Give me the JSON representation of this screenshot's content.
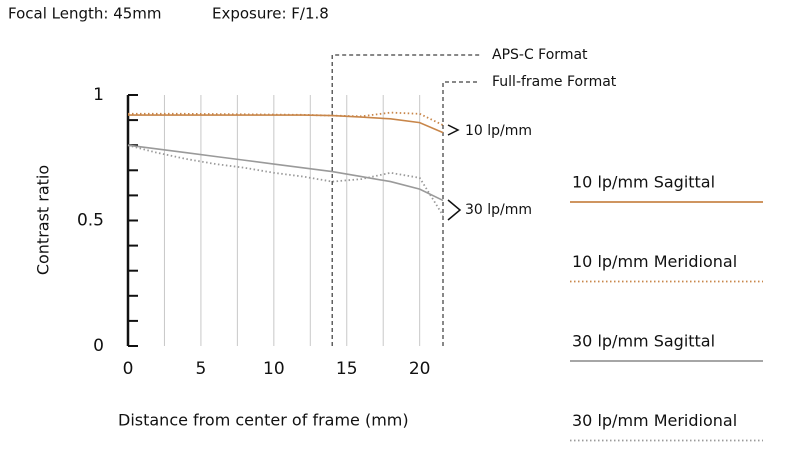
{
  "chart_data": {
    "type": "line",
    "title": "Focal Length: 45mm",
    "subtitle": "Exposure: F/1.8",
    "xlabel": "Distance from center of frame (mm)",
    "ylabel": "Contrast ratio",
    "x": [
      0,
      2,
      4,
      6,
      8,
      10,
      12,
      14,
      16,
      18,
      20,
      21.6
    ],
    "series": [
      {
        "name": "10 lp/mm Sagittal",
        "color": "#c8864a",
        "style": "solid",
        "values": [
          0.92,
          0.92,
          0.92,
          0.92,
          0.92,
          0.92,
          0.92,
          0.918,
          0.912,
          0.905,
          0.89,
          0.85
        ]
      },
      {
        "name": "10 lp/mm Meridional",
        "color": "#c8864a",
        "style": "dotted",
        "values": [
          0.925,
          0.925,
          0.925,
          0.924,
          0.923,
          0.922,
          0.921,
          0.918,
          0.915,
          0.93,
          0.925,
          0.88
        ]
      },
      {
        "name": "30 lp/mm Sagittal",
        "color": "#9a9a9a",
        "style": "solid",
        "values": [
          0.8,
          0.785,
          0.77,
          0.755,
          0.74,
          0.725,
          0.71,
          0.695,
          0.675,
          0.655,
          0.625,
          0.58
        ]
      },
      {
        "name": "30 lp/mm Meridional",
        "color": "#9a9a9a",
        "style": "dotted",
        "values": [
          0.8,
          0.77,
          0.745,
          0.725,
          0.71,
          0.69,
          0.675,
          0.655,
          0.665,
          0.69,
          0.67,
          0.52
        ]
      }
    ],
    "annotations": [
      "10 lp/mm",
      "30 lp/mm"
    ],
    "formats": [
      {
        "label": "APS-C Format",
        "x": 14
      },
      {
        "label": "Full-frame Format",
        "x": 21.6
      }
    ],
    "xlim": [
      0,
      21.6
    ],
    "ylim": [
      0,
      1
    ],
    "xticks": [
      0,
      5,
      10,
      15,
      20
    ],
    "yticks": [
      0,
      0.5,
      1
    ],
    "yminorticks": [
      0.1,
      0.2,
      0.3,
      0.4,
      0.6,
      0.7,
      0.8,
      0.9
    ],
    "xgrid": [
      2.5,
      5,
      7.5,
      10,
      12.5,
      15,
      17.5,
      20
    ]
  }
}
